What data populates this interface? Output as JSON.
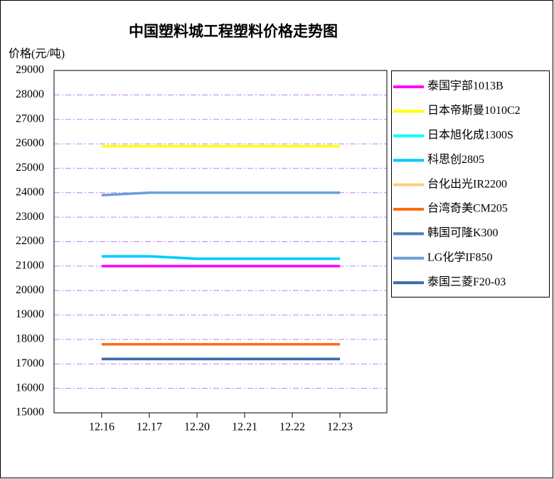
{
  "chart_data": {
    "type": "line",
    "title": "中国塑料城工程塑料价格走势图",
    "y_label": "价格(元/吨)",
    "categories": [
      "12.16",
      "12.17",
      "12.20",
      "12.21",
      "12.22",
      "12.23"
    ],
    "ylim": [
      15000,
      29000
    ],
    "yticks": [
      15000,
      16000,
      17000,
      18000,
      19000,
      20000,
      21000,
      22000,
      23000,
      24000,
      25000,
      26000,
      27000,
      28000,
      29000
    ],
    "grid": true,
    "legend": "right",
    "series": [
      {
        "name": "泰国宇部1013B",
        "color": "#ff00ff",
        "values": [
          21000,
          21000,
          21000,
          21000,
          21000,
          21000
        ]
      },
      {
        "name": "日本帝斯曼1010C2",
        "color": "#ffff00",
        "values": [
          25900,
          25900,
          25900,
          25900,
          25900,
          25900
        ]
      },
      {
        "name": "日本旭化成1300S",
        "color": "#00ffff",
        "values": [
          21400,
          21400,
          21300,
          21300,
          21300,
          21300
        ]
      },
      {
        "name": "科思创2805",
        "color": "#00ccff",
        "values": [
          21400,
          21400,
          21300,
          21300,
          21300,
          21300
        ]
      },
      {
        "name": "台化出光IR2200",
        "color": "#ffcc80",
        "values": [
          17800,
          17800,
          17800,
          17800,
          17800,
          17800
        ]
      },
      {
        "name": "台湾奇美CM205",
        "color": "#ff6a10",
        "values": [
          17800,
          17800,
          17800,
          17800,
          17800,
          17800
        ]
      },
      {
        "name": "韩国可隆K300",
        "color": "#4a7ebb",
        "values": [
          17200,
          17200,
          17200,
          17200,
          17200,
          17200
        ]
      },
      {
        "name": "LG化学IF850",
        "color": "#6a9fd8",
        "values": [
          23900,
          24000,
          24000,
          24000,
          24000,
          24000
        ]
      },
      {
        "name": "泰国三菱F20-03",
        "color": "#3a6aa8",
        "values": [
          17200,
          17200,
          17200,
          17200,
          17200,
          17200
        ]
      }
    ]
  }
}
